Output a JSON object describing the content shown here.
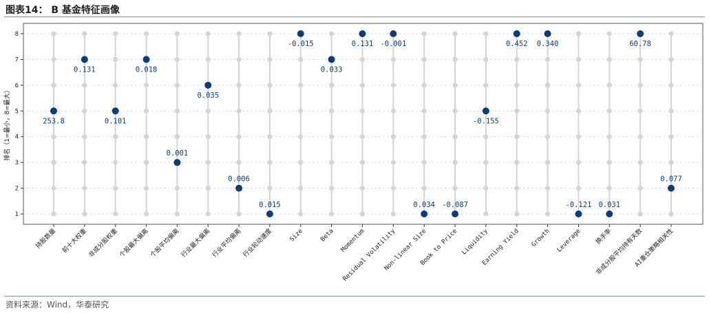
{
  "figure": {
    "title": "图表14：  B 基金特征画像",
    "source": "资料来源：Wind，华泰研究"
  },
  "colors": {
    "highlight": "#0b3d7e",
    "background_dot": "#d4d4d4",
    "label": "#0b3d7e",
    "grid": "#d0d0d0"
  },
  "chart_data": {
    "type": "scatter",
    "ylabel": "排名（1=最小，8=最大）",
    "ylim": [
      0.6,
      8.4
    ],
    "yticks": [
      1,
      2,
      3,
      4,
      5,
      6,
      7,
      8
    ],
    "grid": true,
    "categories": [
      "持股数量",
      "前十大权重",
      "非成分股权重",
      "个股最大偏离",
      "个股平均偏离",
      "行业最大偏离",
      "行业平均偏离",
      "行业轮动速度",
      "Size",
      "Beta",
      "Momentum",
      "Residual Volatility",
      "Non-linear Size",
      "Book to Price",
      "Liquidity",
      "Earning Yield",
      "Growth",
      "Leverage",
      "换手率",
      "非成分股平均持有天数",
      "AI重仓策略相关性"
    ],
    "ranks": [
      5,
      7,
      5,
      7,
      3,
      6,
      2,
      1,
      8,
      7,
      8,
      8,
      1,
      1,
      5,
      8,
      8,
      1,
      1,
      8,
      2
    ],
    "value_labels": [
      "253.8",
      "0.131",
      "0.101",
      "0.018",
      "0.001",
      "0.035",
      "0.006",
      "0.015",
      "-0.015",
      "0.033",
      "0.131",
      "-0.001",
      "0.034",
      "-0.087",
      "-0.155",
      "0.452",
      "0.340",
      "-0.121",
      "0.031",
      "60.78",
      "0.077"
    ],
    "label_position": [
      "below",
      "below",
      "below",
      "below",
      "above",
      "below",
      "above",
      "above",
      "below",
      "below",
      "below",
      "below",
      "above",
      "above",
      "below",
      "below",
      "below",
      "above",
      "above",
      "below",
      "above"
    ]
  }
}
